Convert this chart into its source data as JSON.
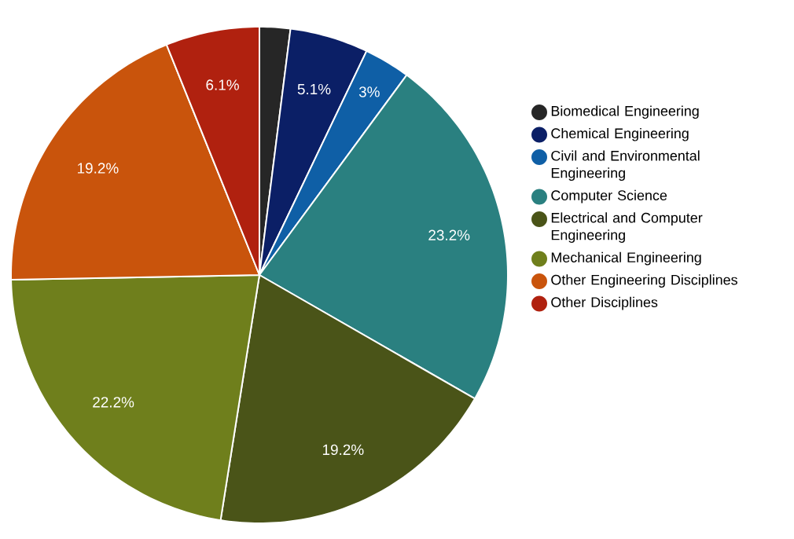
{
  "chart_data": {
    "type": "pie",
    "categories": [
      "Biomedical Engineering",
      "Chemical Engineering",
      "Civil and Environmental Engineering",
      "Computer Science",
      "Electrical and Computer Engineering",
      "Mechanical Engineering",
      "Other Engineering Disciplines",
      "Other Disciplines"
    ],
    "values": [
      2.0,
      5.1,
      3,
      23.2,
      19.2,
      22.2,
      19.2,
      6.1
    ],
    "value_labels": [
      null,
      "5.1%",
      "3%",
      "23.2%",
      "19.2%",
      "22.2%",
      "19.2%",
      "6.1%"
    ],
    "colors": [
      "#262626",
      "#0b1f66",
      "#0f5fa6",
      "#2a8080",
      "#4a5418",
      "#6f7f1c",
      "#c9540c",
      "#b0210f"
    ],
    "legend": "right"
  }
}
